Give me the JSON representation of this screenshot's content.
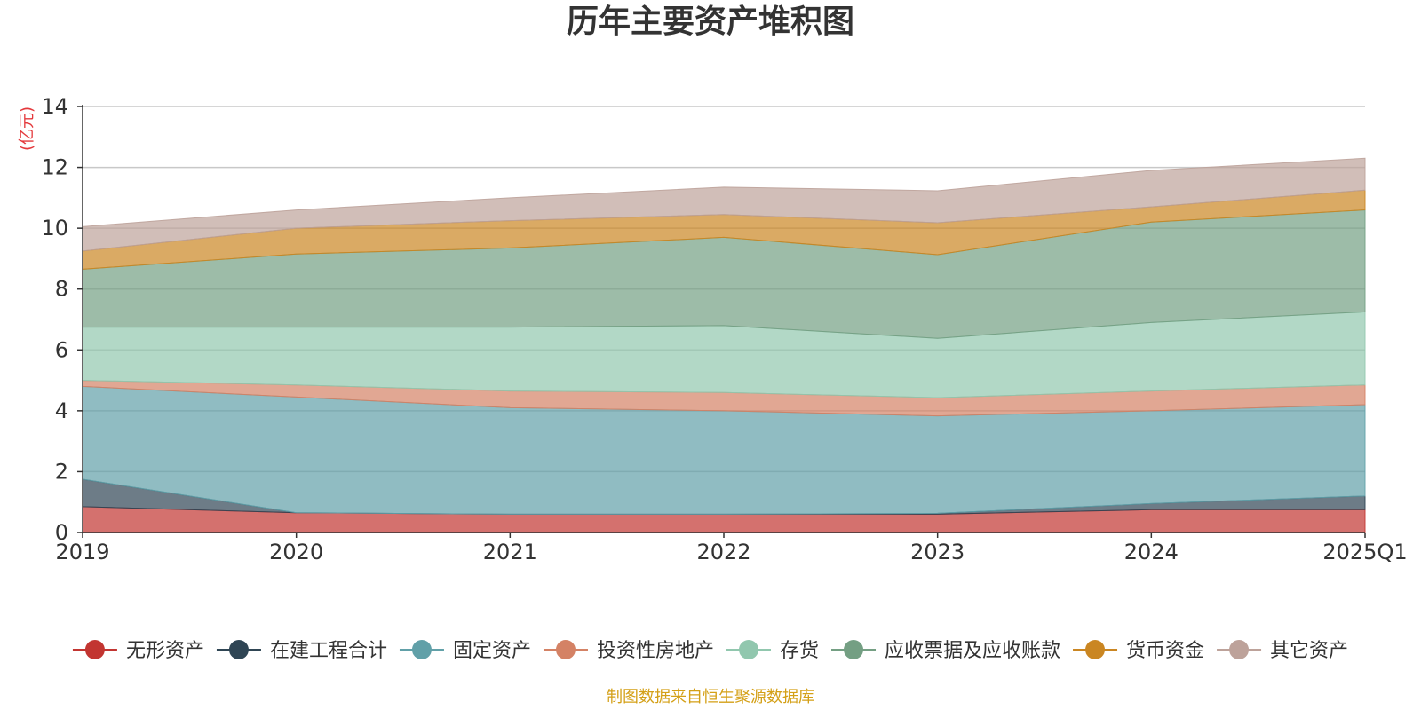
{
  "chart_data": {
    "type": "area",
    "stacked": true,
    "title": "历年主要资产堆积图",
    "unit_label": "(亿元)",
    "source": "制图数据来自恒生聚源数据库",
    "categories": [
      "2019",
      "2020",
      "2021",
      "2022",
      "2023",
      "2024",
      "2025Q1"
    ],
    "ylim": [
      0,
      14
    ],
    "yticks": [
      0,
      2,
      4,
      6,
      8,
      10,
      12,
      14
    ],
    "series": [
      {
        "name": "无形资产",
        "color": "#c23531",
        "legend_color": "#c23531",
        "values": [
          0.85,
          0.65,
          0.6,
          0.6,
          0.6,
          0.75,
          0.75
        ]
      },
      {
        "name": "在建工程合计",
        "color": "#2f4554",
        "legend_color": "#2f4554",
        "values": [
          0.9,
          0.0,
          0.0,
          0.0,
          0.03,
          0.2,
          0.45
        ]
      },
      {
        "name": "固定资产",
        "color": "#61a0a8",
        "legend_color": "#61a0a8",
        "values": [
          3.05,
          3.8,
          3.5,
          3.4,
          3.2,
          3.05,
          3.0
        ]
      },
      {
        "name": "投资性房地产",
        "color": "#d48265",
        "legend_color": "#d48265",
        "values": [
          0.2,
          0.4,
          0.55,
          0.6,
          0.6,
          0.65,
          0.65
        ]
      },
      {
        "name": "存货",
        "color": "#91c7ae",
        "legend_color": "#91c7ae",
        "values": [
          1.75,
          1.9,
          2.1,
          2.2,
          1.95,
          2.25,
          2.4
        ]
      },
      {
        "name": "应收票据及应收账款",
        "color": "#749f83",
        "legend_color": "#749f83",
        "values": [
          1.9,
          2.4,
          2.6,
          2.9,
          2.75,
          3.3,
          3.35
        ]
      },
      {
        "name": "货币资金",
        "color": "#ca8622",
        "legend_color": "#ca8622",
        "values": [
          0.6,
          0.85,
          0.9,
          0.75,
          1.05,
          0.5,
          0.65
        ]
      },
      {
        "name": "其它资产",
        "color": "#bda29a",
        "legend_color": "#bda29a",
        "values": [
          0.8,
          0.6,
          0.75,
          0.9,
          1.05,
          1.2,
          1.05
        ]
      }
    ]
  }
}
